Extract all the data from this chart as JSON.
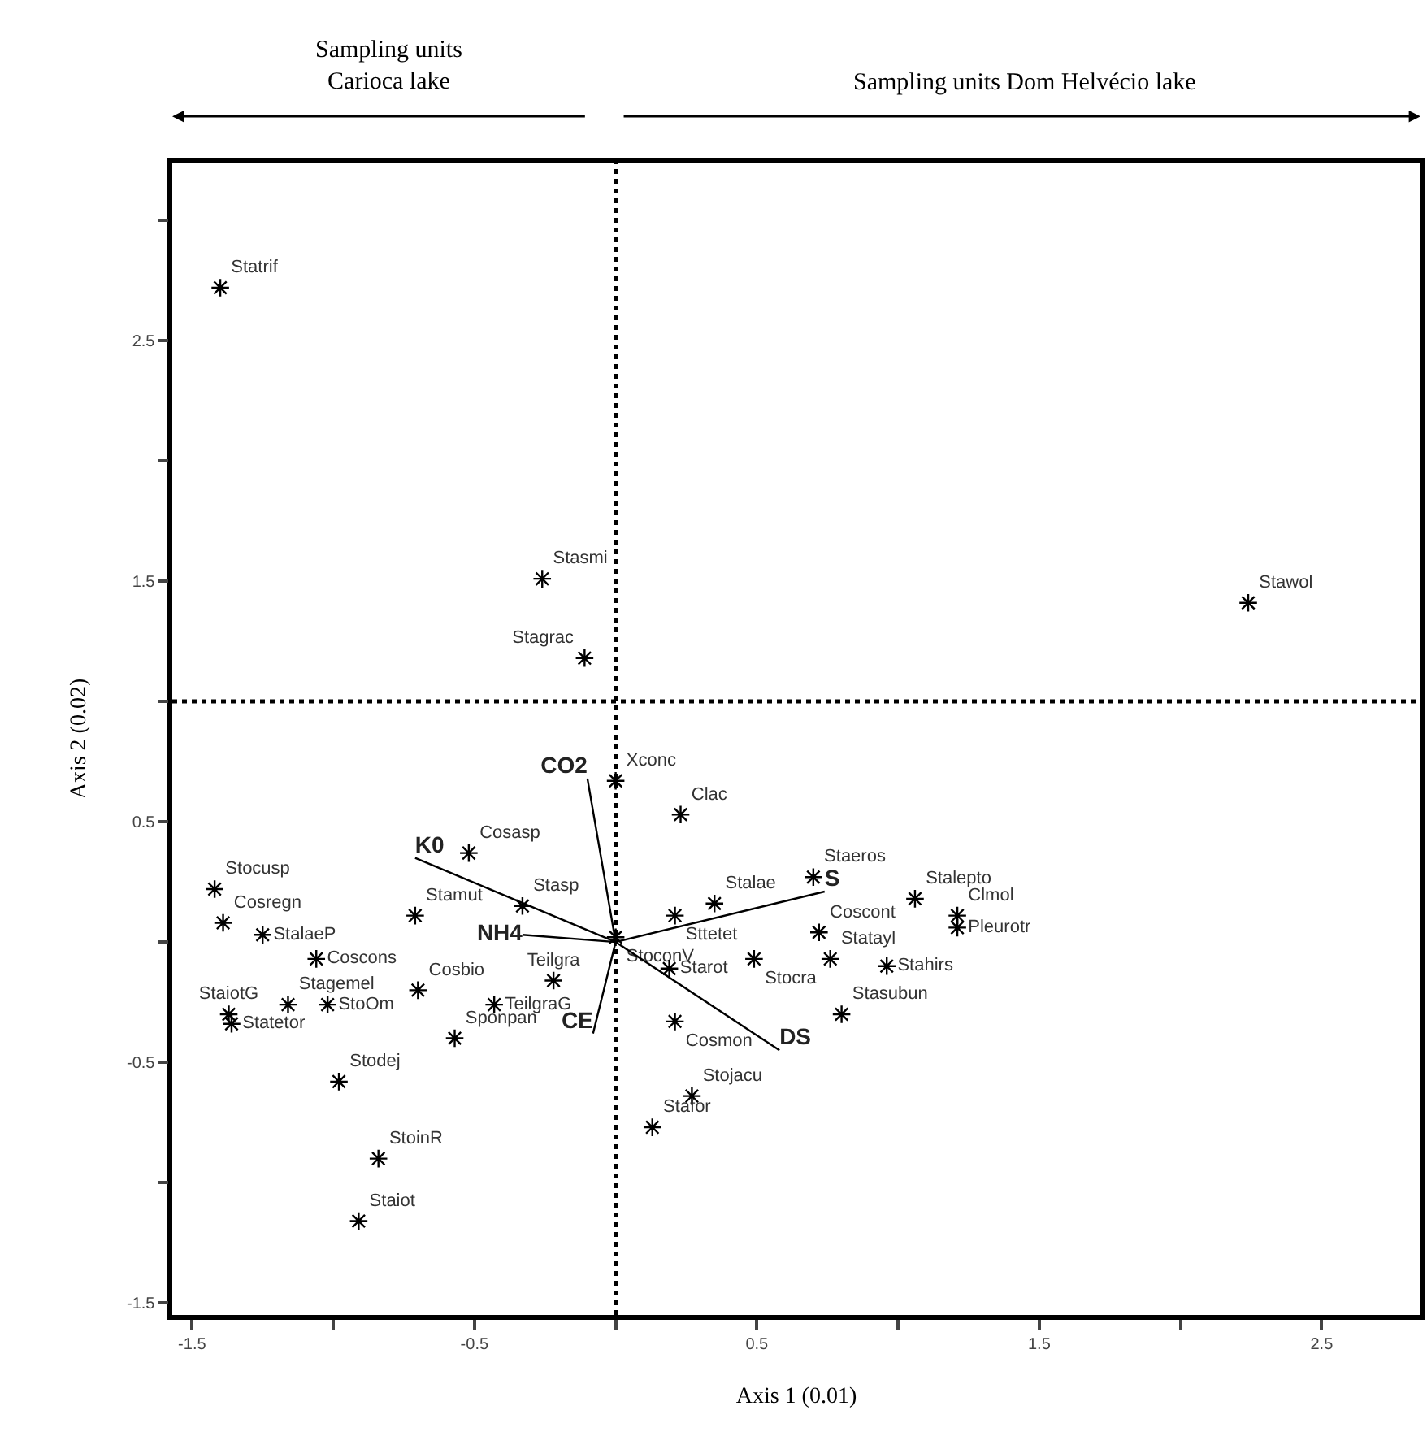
{
  "chart_data": {
    "type": "scatter",
    "xlabel": "Axis 1 (0.01)",
    "ylabel": "Axis 2 (0.02)",
    "xlim": [
      -1.57,
      2.85
    ],
    "ylim": [
      -1.55,
      3.24
    ],
    "xticks": [
      -1.5,
      {
        "value": -1.0,
        "label": null
      },
      -0.5,
      {
        "value": 0,
        "label": null
      },
      0.5,
      {
        "value": 1.0,
        "label": null
      },
      1.5,
      {
        "value": 2.0,
        "label": null
      },
      2.5
    ],
    "yticks": [
      -1.5,
      {
        "value": -1.0,
        "label": null
      },
      -0.5,
      {
        "value": 0,
        "label": null
      },
      0.5,
      {
        "value": 1.0,
        "label": null
      },
      1.5,
      {
        "value": 2.0,
        "label": null
      },
      2.5,
      {
        "value": 3.0,
        "label": null
      }
    ],
    "grid": false,
    "legend": false,
    "marker": "cross",
    "ref_lines": [
      {
        "axis": "x",
        "value": 0,
        "line_style": "dotted",
        "color": "#000000"
      },
      {
        "axis": "y",
        "value": 1,
        "line_style": "dotted",
        "color": "#000000"
      }
    ],
    "annotations": [
      "Sampling units\nCarioca lake",
      "Sampling units Dom Helvécio lake"
    ],
    "series": [
      {
        "name": "Statrif",
        "color": "#000000",
        "x": [
          -1.4
        ],
        "values": [
          2.72
        ]
      },
      {
        "name": "Stasmi",
        "color": "#000000",
        "x": [
          -0.26
        ],
        "values": [
          1.51
        ]
      },
      {
        "name": "Stagrac",
        "color": "#000000",
        "x": [
          -0.11
        ],
        "values": [
          1.18
        ]
      },
      {
        "name": "Stawol",
        "color": "#000000",
        "x": [
          2.24
        ],
        "values": [
          1.41
        ]
      },
      {
        "name": "Stocusp",
        "color": "#000000",
        "x": [
          -1.42
        ],
        "values": [
          0.22
        ]
      },
      {
        "name": "Cosregn",
        "color": "#000000",
        "x": [
          -1.39
        ],
        "values": [
          0.08
        ]
      },
      {
        "name": "StalaeP",
        "color": "#000000",
        "x": [
          -1.25
        ],
        "values": [
          0.03
        ]
      },
      {
        "name": "Coscons",
        "color": "#000000",
        "x": [
          -1.06
        ],
        "values": [
          -0.07
        ]
      },
      {
        "name": "Stamut",
        "color": "#000000",
        "x": [
          -0.71
        ],
        "values": [
          0.11
        ]
      },
      {
        "name": "Cosasp",
        "color": "#000000",
        "x": [
          -0.52
        ],
        "values": [
          0.37
        ]
      },
      {
        "name": "Cosbio",
        "color": "#000000",
        "x": [
          -0.7
        ],
        "values": [
          -0.2
        ]
      },
      {
        "name": "Stagemel",
        "color": "#000000",
        "x": [
          -1.16
        ],
        "values": [
          -0.26
        ]
      },
      {
        "name": "StoOm",
        "color": "#000000",
        "x": [
          -1.02
        ],
        "values": [
          -0.26
        ]
      },
      {
        "name": "StaiotG",
        "color": "#000000",
        "x": [
          -1.37
        ],
        "values": [
          -0.3
        ]
      },
      {
        "name": "Statetor",
        "color": "#000000",
        "x": [
          -1.36
        ],
        "values": [
          -0.34
        ]
      },
      {
        "name": "Sponpan",
        "color": "#000000",
        "x": [
          -0.57
        ],
        "values": [
          -0.4
        ]
      },
      {
        "name": "TeilgraG",
        "color": "#000000",
        "x": [
          -0.43
        ],
        "values": [
          -0.26
        ]
      },
      {
        "name": "Stodej",
        "color": "#000000",
        "x": [
          -0.98
        ],
        "values": [
          -0.58
        ]
      },
      {
        "name": "StoinR",
        "color": "#000000",
        "x": [
          -0.84
        ],
        "values": [
          -0.9
        ]
      },
      {
        "name": "Staiot",
        "color": "#000000",
        "x": [
          -0.91
        ],
        "values": [
          -1.16
        ]
      },
      {
        "name": "Xconc",
        "color": "#000000",
        "x": [
          0.0
        ],
        "values": [
          0.67
        ]
      },
      {
        "name": "Clac",
        "color": "#000000",
        "x": [
          0.23
        ],
        "values": [
          0.53
        ]
      },
      {
        "name": "Stasp",
        "color": "#000000",
        "x": [
          -0.33
        ],
        "values": [
          0.15
        ]
      },
      {
        "name": "Sttetet",
        "color": "#000000",
        "x": [
          0.21
        ],
        "values": [
          0.11
        ]
      },
      {
        "name": "Stalae",
        "color": "#000000",
        "x": [
          0.35
        ],
        "values": [
          0.16
        ]
      },
      {
        "name": "StoconV",
        "color": "#000000",
        "x": [
          0.0
        ],
        "values": [
          0.02
        ]
      },
      {
        "name": "Teilgra",
        "color": "#000000",
        "x": [
          -0.22
        ],
        "values": [
          -0.16
        ]
      },
      {
        "name": "Starot",
        "color": "#000000",
        "x": [
          0.19
        ],
        "values": [
          -0.11
        ]
      },
      {
        "name": "Stocra",
        "color": "#000000",
        "x": [
          0.49
        ],
        "values": [
          -0.07
        ]
      },
      {
        "name": "Cosmon",
        "color": "#000000",
        "x": [
          0.21
        ],
        "values": [
          -0.33
        ]
      },
      {
        "name": "Stojacu",
        "color": "#000000",
        "x": [
          0.27
        ],
        "values": [
          -0.64
        ]
      },
      {
        "name": "Stafor",
        "color": "#000000",
        "x": [
          0.13
        ],
        "values": [
          -0.77
        ]
      },
      {
        "name": "Staeros",
        "color": "#000000",
        "x": [
          0.7
        ],
        "values": [
          0.27
        ]
      },
      {
        "name": "Stalepto",
        "color": "#000000",
        "x": [
          1.06
        ],
        "values": [
          0.18
        ]
      },
      {
        "name": "Statayl",
        "color": "#000000",
        "x": [
          0.76
        ],
        "values": [
          -0.07
        ]
      },
      {
        "name": "Coscont",
        "color": "#000000",
        "x": [
          0.72
        ],
        "values": [
          0.04
        ]
      },
      {
        "name": "Clmol",
        "color": "#000000",
        "x": [
          1.21
        ],
        "values": [
          0.11
        ]
      },
      {
        "name": "Pleurotr",
        "color": "#000000",
        "x": [
          1.21
        ],
        "values": [
          0.06
        ]
      },
      {
        "name": "Stahirs",
        "color": "#000000",
        "x": [
          0.96
        ],
        "values": [
          -0.1
        ]
      },
      {
        "name": "Stasubun",
        "color": "#000000",
        "x": [
          0.8
        ],
        "values": [
          -0.3
        ]
      },
      {
        "type": "line",
        "marker": "none",
        "name": "K0",
        "color": "#000000",
        "x": [
          0,
          -0.71
        ],
        "values": [
          0,
          0.35
        ]
      },
      {
        "type": "line",
        "marker": "none",
        "name": "CO2",
        "color": "#000000",
        "x": [
          0,
          -0.1
        ],
        "values": [
          0,
          0.68
        ]
      },
      {
        "type": "line",
        "marker": "none",
        "name": "NH4",
        "color": "#000000",
        "x": [
          0,
          -0.33
        ],
        "values": [
          0,
          0.03
        ]
      },
      {
        "type": "line",
        "marker": "none",
        "name": "CE",
        "color": "#000000",
        "x": [
          0,
          -0.08
        ],
        "values": [
          0,
          -0.38
        ]
      },
      {
        "type": "line",
        "marker": "none",
        "name": "S",
        "color": "#000000",
        "x": [
          0,
          0.74
        ],
        "values": [
          0,
          0.21
        ]
      },
      {
        "type": "line",
        "marker": "none",
        "name": "DS",
        "color": "#000000",
        "x": [
          0,
          0.58
        ],
        "values": [
          0,
          -0.45
        ]
      }
    ]
  }
}
